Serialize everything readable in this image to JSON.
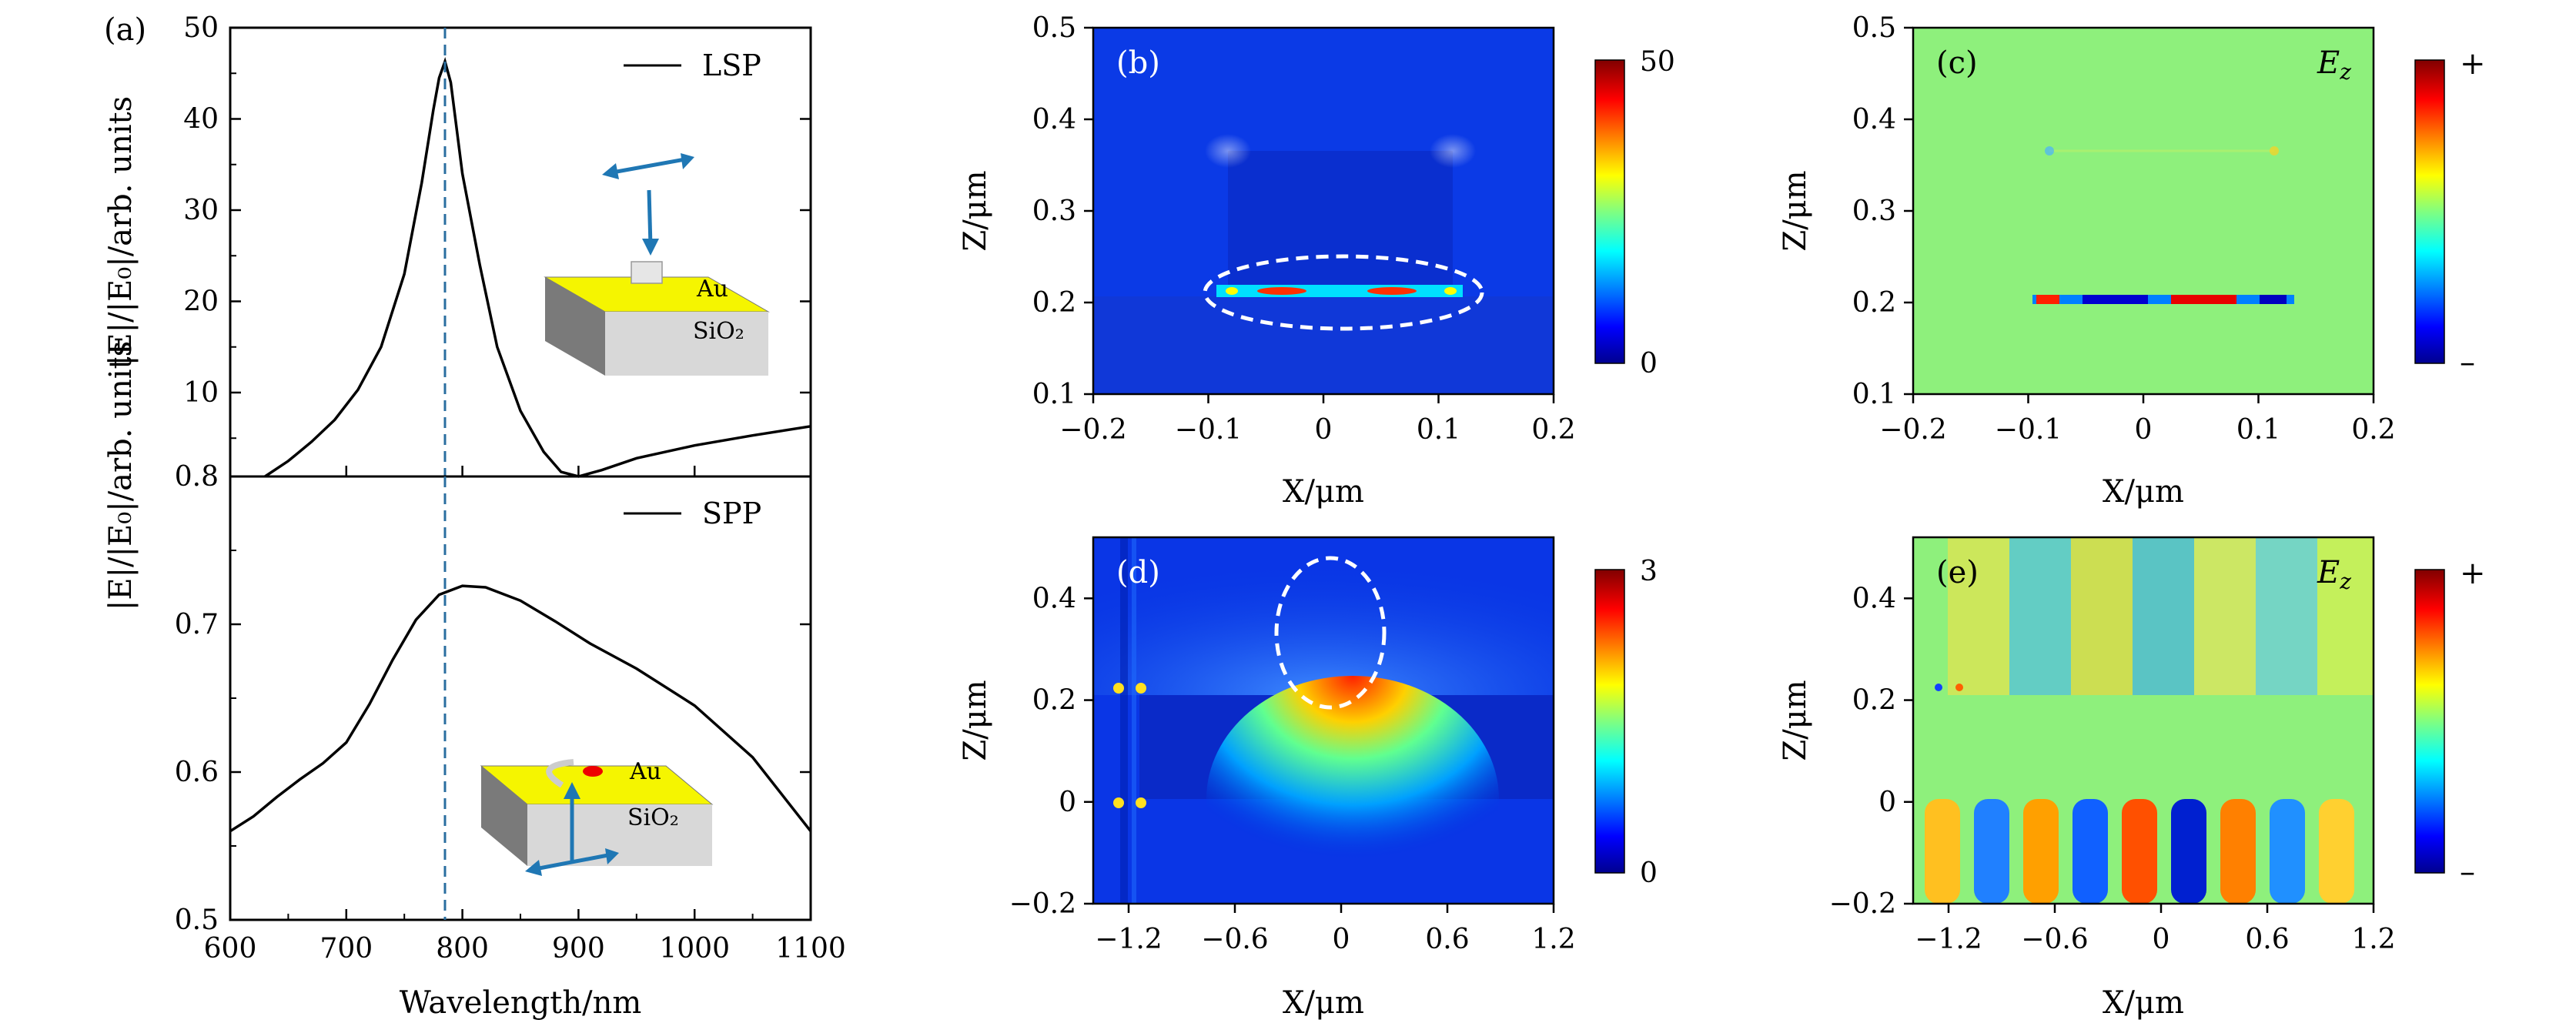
{
  "chart_data": [
    {
      "panel": "a-top",
      "type": "line",
      "panel_label": "(a)",
      "legend": "LSP",
      "ylabel": "|E|/|E₀|/arb. units",
      "xlim": [
        600,
        1100
      ],
      "ylim": [
        0.8,
        50
      ],
      "yticks": [
        "10",
        "20",
        "30",
        "40",
        "50"
      ],
      "ytick_bottom": "0.8",
      "marker_wavelength": 785,
      "inset_labels": [
        "Au",
        "SiO₂"
      ],
      "series": [
        {
          "x": [
            630,
            650,
            670,
            690,
            710,
            730,
            750,
            765,
            775,
            780,
            785,
            790,
            800,
            815,
            830,
            850,
            870,
            885,
            900,
            920,
            950,
            1000,
            1050,
            1100
          ],
          "y": [
            0.8,
            2.5,
            4.6,
            7,
            10.3,
            15,
            23,
            33,
            41,
            44.5,
            46.3,
            44,
            34,
            24,
            15,
            8,
            3.5,
            1.3,
            0.8,
            1.5,
            2.8,
            4.2,
            5.3,
            6.3
          ]
        }
      ]
    },
    {
      "panel": "a-bottom",
      "type": "line",
      "legend": "SPP",
      "ylabel": "|E|/|E₀|/arb. units",
      "xlabel": "Wavelength/nm",
      "xlim": [
        600,
        1100
      ],
      "ylim": [
        0.5,
        0.8
      ],
      "xticks": [
        "600",
        "700",
        "800",
        "900",
        "1000",
        "1100"
      ],
      "yticks": [
        "0.5",
        "0.6",
        "0.7"
      ],
      "marker_wavelength": 785,
      "inset_labels": [
        "Au",
        "SiO₂"
      ],
      "series": [
        {
          "x": [
            600,
            620,
            640,
            660,
            680,
            700,
            720,
            740,
            760,
            780,
            800,
            820,
            850,
            880,
            910,
            950,
            1000,
            1050,
            1100
          ],
          "y": [
            0.56,
            0.57,
            0.583,
            0.595,
            0.606,
            0.62,
            0.646,
            0.676,
            0.703,
            0.72,
            0.726,
            0.725,
            0.716,
            0.702,
            0.687,
            0.67,
            0.645,
            0.61,
            0.56
          ]
        }
      ]
    },
    {
      "panel": "b",
      "type": "heatmap",
      "panel_label": "(b)",
      "xlabel": "X/μm",
      "ylabel": "Z/μm",
      "xlim": [
        -0.2,
        0.2
      ],
      "ylim": [
        0.1,
        0.5
      ],
      "xticks": [
        "−0.2",
        "−0.1",
        "0",
        "0.1",
        "0.2"
      ],
      "yticks": [
        "0.1",
        "0.2",
        "0.3",
        "0.4",
        "0.5"
      ],
      "colorbar": {
        "max": "50",
        "min": "0"
      }
    },
    {
      "panel": "c",
      "type": "heatmap",
      "panel_label": "(c)",
      "field_label": "E",
      "field_sub": "z",
      "xlabel": "X/μm",
      "ylabel": "Z/μm",
      "xlim": [
        -0.2,
        0.2
      ],
      "ylim": [
        0.1,
        0.5
      ],
      "xticks": [
        "−0.2",
        "−0.1",
        "0",
        "0.1",
        "0.2"
      ],
      "yticks": [
        "0.1",
        "0.2",
        "0.3",
        "0.4",
        "0.5"
      ],
      "colorbar": {
        "max": "+",
        "min": "–"
      }
    },
    {
      "panel": "d",
      "type": "heatmap",
      "panel_label": "(d)",
      "xlabel": "X/μm",
      "ylabel": "Z/μm",
      "xlim": [
        -1.4,
        1.2
      ],
      "ylim": [
        -0.2,
        0.52
      ],
      "xticks": [
        "−1.2",
        "−0.6",
        "0",
        "0.6",
        "1.2"
      ],
      "yticks": [
        "−0.2",
        "0",
        "0.2",
        "0.4"
      ],
      "colorbar": {
        "max": "3",
        "min": "0"
      }
    },
    {
      "panel": "e",
      "type": "heatmap",
      "panel_label": "(e)",
      "field_label": "E",
      "field_sub": "z",
      "xlabel": "X/μm",
      "ylabel": "Z/μm",
      "xlim": [
        -1.4,
        1.2
      ],
      "ylim": [
        -0.2,
        0.52
      ],
      "xticks": [
        "−1.2",
        "−0.6",
        "0",
        "0.6",
        "1.2"
      ],
      "yticks": [
        "−0.2",
        "0",
        "0.2",
        "0.4"
      ],
      "colorbar": {
        "max": "+",
        "min": "–"
      }
    }
  ]
}
